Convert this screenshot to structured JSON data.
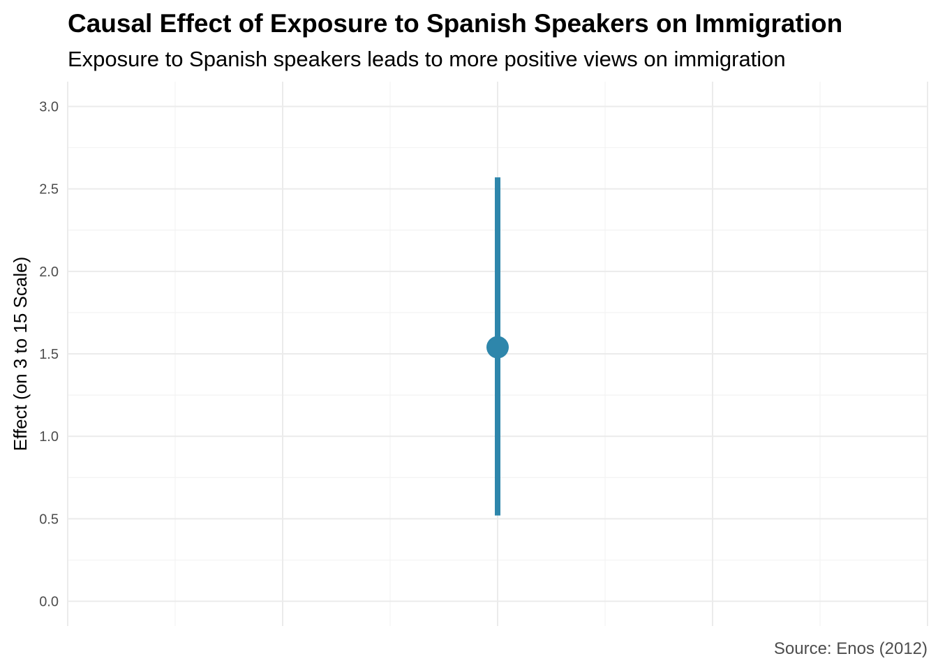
{
  "chart_data": {
    "type": "scatter",
    "title": "Causal Effect of Exposure to Spanish Speakers on Immigration",
    "subtitle": "Exposure to Spanish speakers leads to more positive views on immigration",
    "caption": "Source: Enos (2012)",
    "xlabel": "",
    "ylabel": "Effect (on 3 to 15 Scale)",
    "ylim": [
      -0.15,
      3.15
    ],
    "xlim": [
      0,
      8
    ],
    "y_ticks": [
      "0.0",
      "0.5",
      "1.0",
      "1.5",
      "2.0",
      "2.5",
      "3.0"
    ],
    "grid": true,
    "series": [
      {
        "points": [
          {
            "x": 4,
            "y": 1.54,
            "lower": 0.52,
            "upper": 2.57
          }
        ]
      }
    ],
    "colors": {
      "point": "#2e86ab",
      "errorbar": "#2e86ab"
    }
  }
}
